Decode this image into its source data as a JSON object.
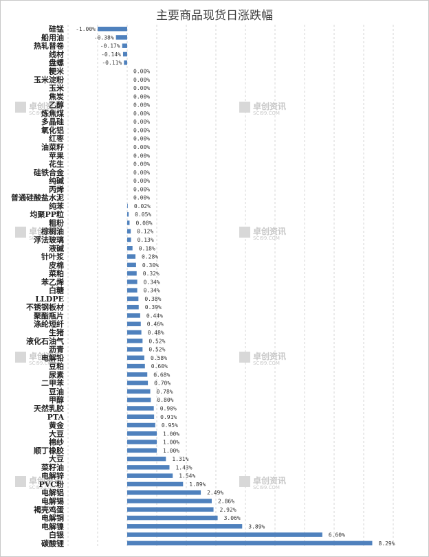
{
  "chart_data": {
    "type": "bar",
    "orientation": "horizontal",
    "title": "主要商品现货日涨跌幅",
    "xlim": [
      -2,
      9
    ],
    "grid": "vertical-dashed",
    "bar_color": "#4f81bd",
    "watermark": {
      "name": "卓创资讯",
      "site": "SCI99.COM"
    },
    "categories": [
      "硅锰",
      "船用油",
      "热轧普卷",
      "线材",
      "盘螺",
      "粳米",
      "玉米淀粉",
      "玉米",
      "焦炭",
      "乙醇",
      "炼焦煤",
      "多晶硅",
      "氧化铝",
      "红枣",
      "油菜籽",
      "苹果",
      "花生",
      "硅铁合金",
      "纯碱",
      "丙烯",
      "普通硅酸盐水泥",
      "纯苯",
      "均聚PP粒",
      "粗粉",
      "棕榈油",
      "浮法玻璃",
      "液碱",
      "针叶浆",
      "皮棉",
      "菜粕",
      "苯乙烯",
      "白糖",
      "LLDPE",
      "不锈钢板材",
      "聚酯瓶片",
      "涤纶短纤",
      "生猪",
      "液化石油气",
      "沥青",
      "电解铅",
      "豆粕",
      "尿素",
      "二甲苯",
      "豆油",
      "甲醇",
      "天然乳胶",
      "PTA",
      "黄金",
      "大豆",
      "棉纱",
      "顺丁橡胶",
      "大豆",
      "菜籽油",
      "电解锌",
      "PVC粉",
      "电解铝",
      "电解锡",
      "褐壳鸡蛋",
      "电解铜",
      "电解镍",
      "白银",
      "碳酸锂"
    ],
    "values": [
      -1.0,
      -0.38,
      -0.17,
      -0.14,
      -0.11,
      0.0,
      0.0,
      0.0,
      0.0,
      0.0,
      0.0,
      0.0,
      0.0,
      0.0,
      0.0,
      0.0,
      0.0,
      0.0,
      0.0,
      0.0,
      0.0,
      0.02,
      0.05,
      0.08,
      0.12,
      0.13,
      0.18,
      0.28,
      0.3,
      0.32,
      0.34,
      0.34,
      0.38,
      0.39,
      0.44,
      0.46,
      0.48,
      0.52,
      0.52,
      0.58,
      0.6,
      0.68,
      0.7,
      0.78,
      0.8,
      0.9,
      0.91,
      0.95,
      1.0,
      1.0,
      1.0,
      1.31,
      1.43,
      1.54,
      1.89,
      2.49,
      2.86,
      2.92,
      3.06,
      3.89,
      6.6,
      8.29
    ],
    "value_labels": [
      "-1.00%",
      "-0.38%",
      "-0.17%",
      "-0.14%",
      "-0.11%",
      "0.00%",
      "0.00%",
      "0.00%",
      "0.00%",
      "0.00%",
      "0.00%",
      "0.00%",
      "0.00%",
      "0.00%",
      "0.00%",
      "0.00%",
      "0.00%",
      "0.00%",
      "0.00%",
      "0.00%",
      "0.00%",
      "0.02%",
      "0.05%",
      "0.08%",
      "0.12%",
      "0.13%",
      "0.18%",
      "0.28%",
      "0.30%",
      "0.32%",
      "0.34%",
      "0.34%",
      "0.38%",
      "0.39%",
      "0.44%",
      "0.46%",
      "0.48%",
      "0.52%",
      "0.52%",
      "0.58%",
      "0.60%",
      "0.68%",
      "0.70%",
      "0.78%",
      "0.80%",
      "0.90%",
      "0.91%",
      "0.95%",
      "1.00%",
      "1.00%",
      "1.00%",
      "1.31%",
      "1.43%",
      "1.54%",
      "1.89%",
      "2.49%",
      "2.86%",
      "2.92%",
      "3.06%",
      "3.89%",
      "6.60%",
      "8.29%"
    ]
  }
}
